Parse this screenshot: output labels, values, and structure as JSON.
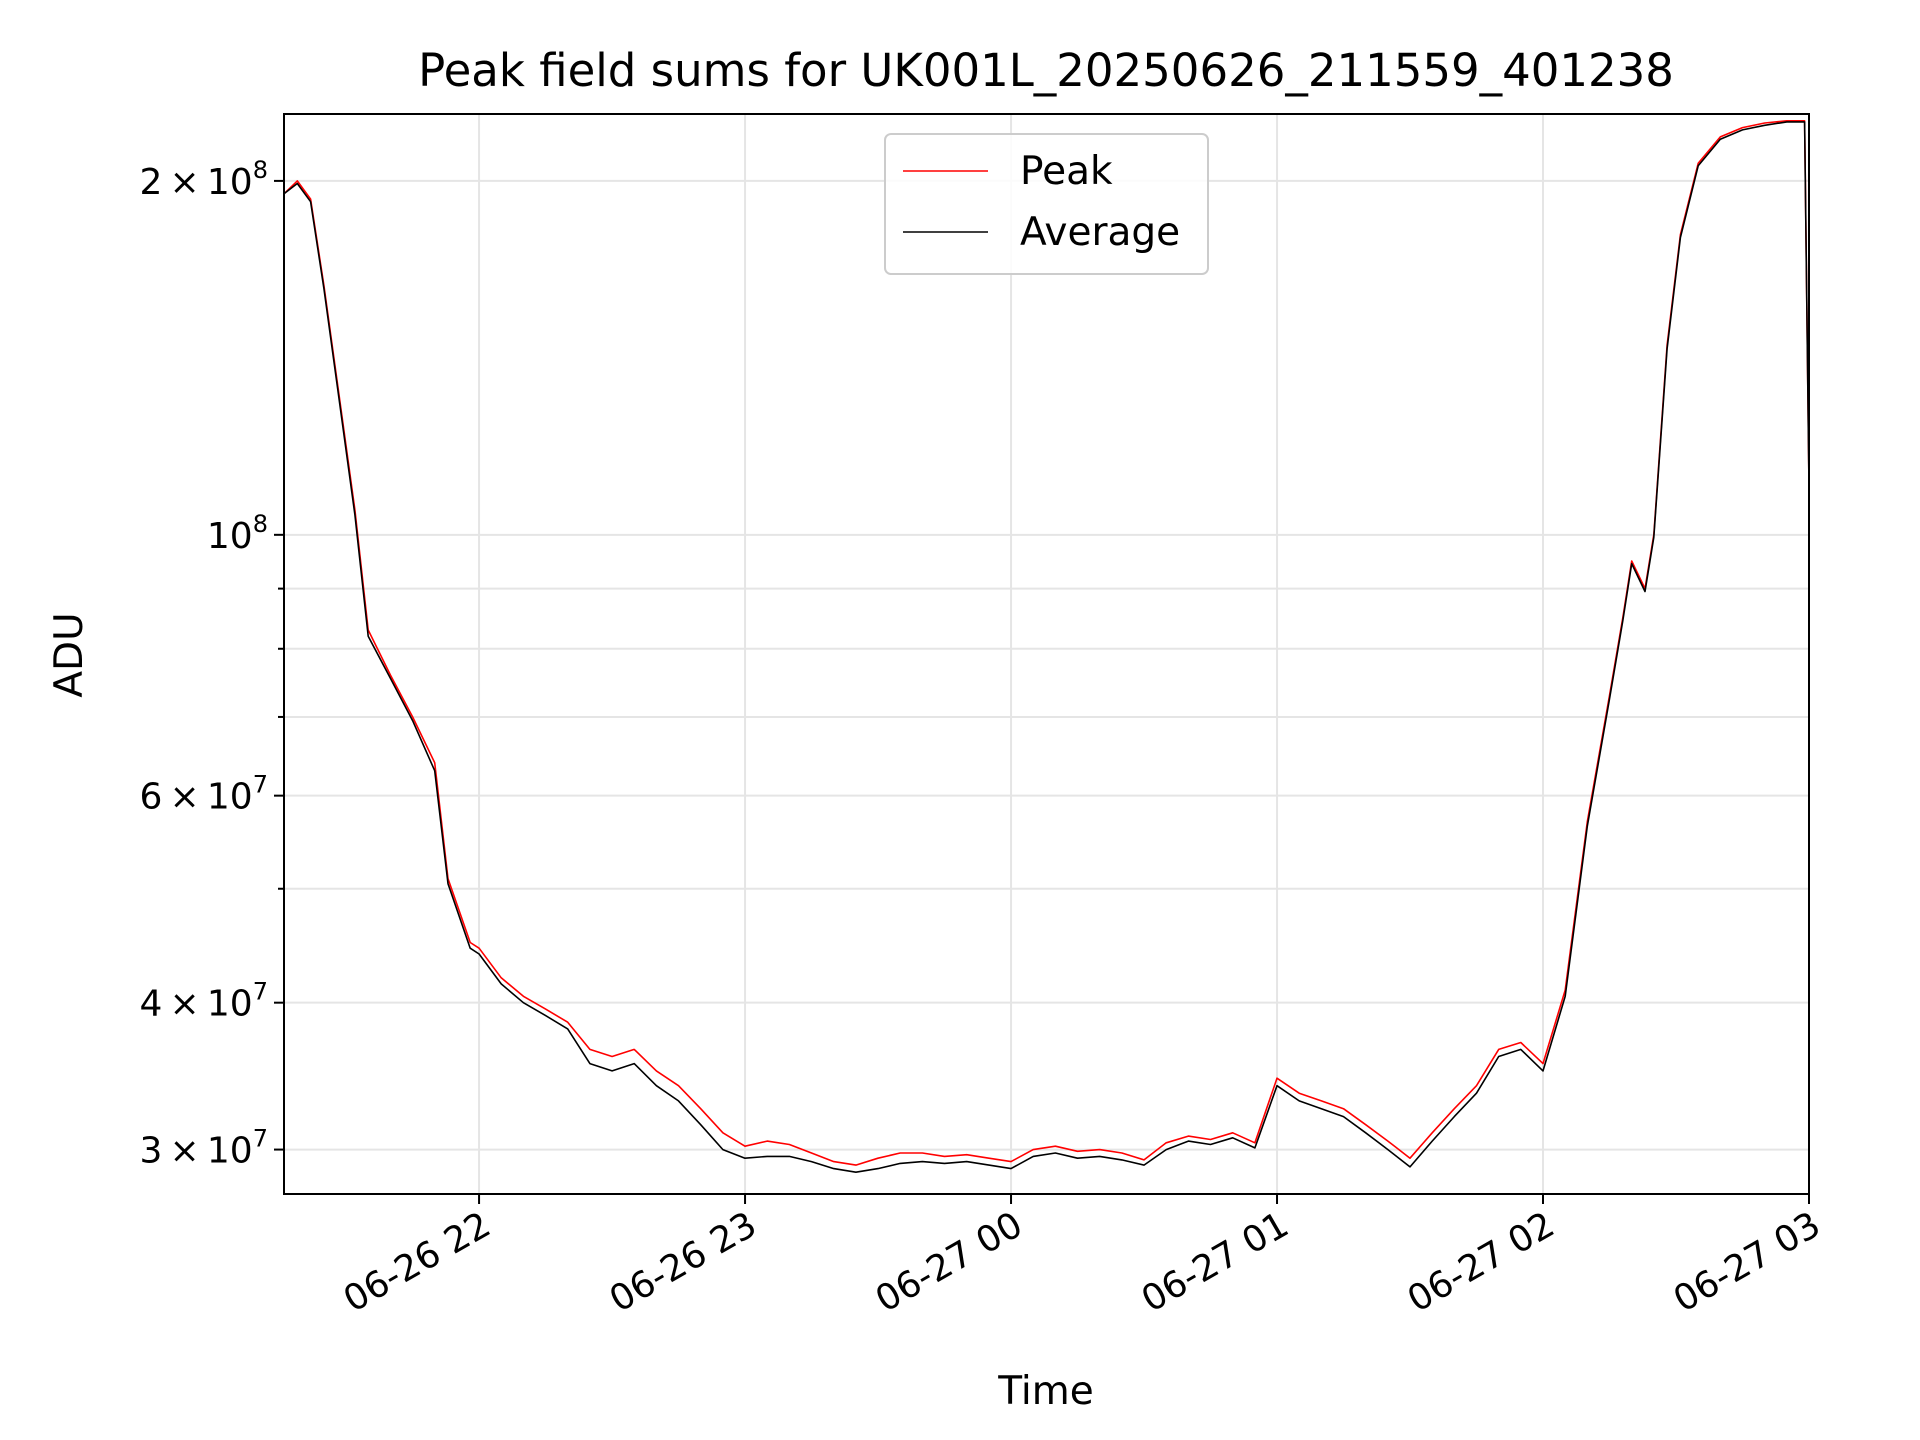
{
  "chart_data": {
    "type": "line",
    "title": "Peak field sums for UK001L_20250626_211559_401238",
    "xlabel": "Time",
    "ylabel": "ADU",
    "yscale": "log",
    "grid": true,
    "legend_position": "top-center",
    "x_range": [
      "06-26 21:16",
      "06-27 03:00"
    ],
    "y_range": [
      27500000,
      228000000
    ],
    "x_ticks": [
      "06-26 22",
      "06-26 23",
      "06-27 00",
      "06-27 01",
      "06-27 02",
      "06-27 03"
    ],
    "y_ticks": [
      {
        "mantissa": "3",
        "exponent": "7",
        "value": 30000000
      },
      {
        "mantissa": "4",
        "exponent": "7",
        "value": 40000000
      },
      {
        "mantissa": "6",
        "exponent": "7",
        "value": 60000000
      },
      {
        "mantissa": "",
        "exponent": "8",
        "value": 100000000
      },
      {
        "mantissa": "2",
        "exponent": "8",
        "value": 200000000
      }
    ],
    "x": [
      "21:16",
      "21:19",
      "21:22",
      "21:25",
      "21:28",
      "21:32",
      "21:35",
      "21:40",
      "21:45",
      "21:50",
      "21:53",
      "21:58",
      "22:00",
      "22:05",
      "22:10",
      "22:15",
      "22:20",
      "22:25",
      "22:30",
      "22:35",
      "22:40",
      "22:45",
      "22:50",
      "22:55",
      "23:00",
      "23:05",
      "23:10",
      "23:15",
      "23:20",
      "23:25",
      "23:30",
      "23:35",
      "23:40",
      "23:45",
      "23:50",
      "23:55",
      "00:00",
      "00:05",
      "00:10",
      "00:15",
      "00:20",
      "00:25",
      "00:30",
      "00:35",
      "00:40",
      "00:45",
      "00:50",
      "00:55",
      "01:00",
      "01:05",
      "01:10",
      "01:15",
      "01:20",
      "01:25",
      "01:30",
      "01:35",
      "01:40",
      "01:45",
      "01:50",
      "01:55",
      "02:00",
      "02:05",
      "02:10",
      "02:15",
      "02:18",
      "02:20",
      "02:23",
      "02:25",
      "02:28",
      "02:31",
      "02:35",
      "02:40",
      "02:45",
      "02:50",
      "02:55",
      "02:59",
      "03:00"
    ],
    "series": [
      {
        "name": "Peak",
        "color": "#ff0000",
        "values": [
          195000000,
          200000000,
          193000000,
          163000000,
          135000000,
          105000000,
          83000000,
          76000000,
          70000000,
          64000000,
          51000000,
          45000000,
          44500000,
          42000000,
          40500000,
          39500000,
          38500000,
          36500000,
          36000000,
          36500000,
          35000000,
          34000000,
          32500000,
          31000000,
          30200000,
          30500000,
          30300000,
          29800000,
          29300000,
          29100000,
          29500000,
          29800000,
          29800000,
          29600000,
          29700000,
          29500000,
          29300000,
          30000000,
          30200000,
          29900000,
          30000000,
          29800000,
          29400000,
          30400000,
          30800000,
          30600000,
          31000000,
          30400000,
          34500000,
          33500000,
          33000000,
          32500000,
          31500000,
          30500000,
          29500000,
          31000000,
          32500000,
          34000000,
          36500000,
          37000000,
          35500000,
          41000000,
          57000000,
          73000000,
          85000000,
          95000000,
          90000000,
          100000000,
          145000000,
          180000000,
          207000000,
          218000000,
          222000000,
          224000000,
          225000000,
          225000000,
          110000000
        ]
      },
      {
        "name": "Average",
        "color": "#000000",
        "values": [
          195000000,
          199000000,
          192000000,
          162000000,
          134000000,
          104000000,
          82000000,
          75500000,
          69500000,
          63000000,
          50500000,
          44500000,
          44000000,
          41500000,
          40000000,
          39000000,
          38000000,
          35500000,
          35000000,
          35500000,
          34000000,
          33000000,
          31500000,
          30000000,
          29500000,
          29600000,
          29600000,
          29300000,
          28900000,
          28700000,
          28900000,
          29200000,
          29300000,
          29200000,
          29300000,
          29100000,
          28900000,
          29600000,
          29800000,
          29500000,
          29600000,
          29400000,
          29100000,
          30000000,
          30500000,
          30300000,
          30700000,
          30100000,
          34000000,
          33000000,
          32500000,
          32000000,
          31000000,
          30000000,
          29000000,
          30500000,
          32000000,
          33500000,
          36000000,
          36500000,
          35000000,
          40500000,
          56500000,
          72500000,
          84500000,
          94500000,
          89500000,
          99500000,
          144000000,
          179000000,
          206000000,
          217000000,
          221000000,
          223000000,
          224500000,
          224500000,
          110000000
        ]
      }
    ]
  }
}
